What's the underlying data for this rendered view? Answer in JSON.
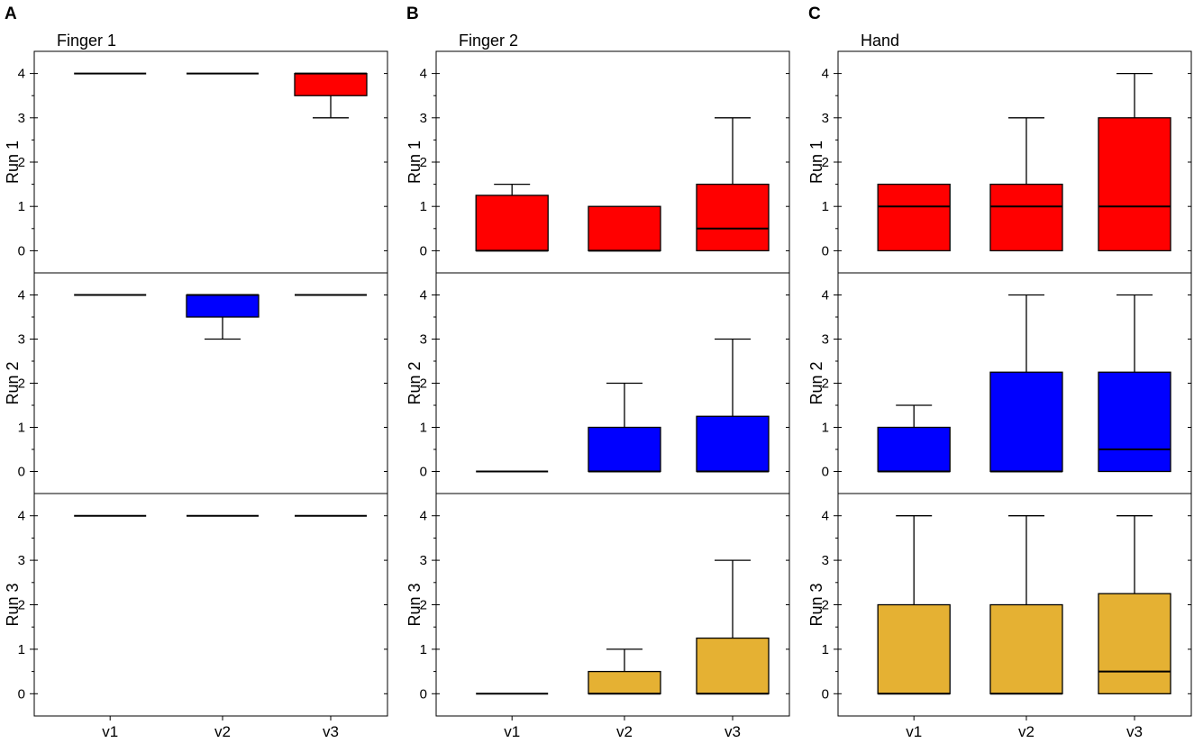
{
  "colors": {
    "run1": "#ff0000",
    "run2": "#0000ff",
    "run3": "#e5b133",
    "stroke": "#000000"
  },
  "chart_data": {
    "type": "boxplot",
    "categories": [
      "v1",
      "v2",
      "v3"
    ],
    "row_labels": [
      "Run 1",
      "Run 2",
      "Run 3"
    ],
    "yticks": [
      0,
      1,
      2,
      3,
      4
    ],
    "ylim": [
      -0.5,
      4.5
    ],
    "panels": [
      {
        "letter": "A",
        "title": "Finger 1",
        "rows": [
          [
            {
              "min": 4,
              "q1": 4,
              "median": 4,
              "q3": 4,
              "max": 4
            },
            {
              "min": 4,
              "q1": 4,
              "median": 4,
              "q3": 4,
              "max": 4
            },
            {
              "min": 3,
              "q1": 3.5,
              "median": 4,
              "q3": 4,
              "max": 4
            }
          ],
          [
            {
              "min": 4,
              "q1": 4,
              "median": 4,
              "q3": 4,
              "max": 4
            },
            {
              "min": 3,
              "q1": 3.5,
              "median": 4,
              "q3": 4,
              "max": 4
            },
            {
              "min": 4,
              "q1": 4,
              "median": 4,
              "q3": 4,
              "max": 4
            }
          ],
          [
            {
              "min": 4,
              "q1": 4,
              "median": 4,
              "q3": 4,
              "max": 4
            },
            {
              "min": 4,
              "q1": 4,
              "median": 4,
              "q3": 4,
              "max": 4
            },
            {
              "min": 4,
              "q1": 4,
              "median": 4,
              "q3": 4,
              "max": 4
            }
          ]
        ]
      },
      {
        "letter": "B",
        "title": "Finger 2",
        "rows": [
          [
            {
              "min": 0,
              "q1": 0,
              "median": 0,
              "q3": 1.25,
              "max": 1.5
            },
            {
              "min": 0,
              "q1": 0,
              "median": 0,
              "q3": 1,
              "max": 1
            },
            {
              "min": 0,
              "q1": 0,
              "median": 0.5,
              "q3": 1.5,
              "max": 3
            }
          ],
          [
            {
              "min": 0,
              "q1": 0,
              "median": 0,
              "q3": 0,
              "max": 0
            },
            {
              "min": 0,
              "q1": 0,
              "median": 0,
              "q3": 1,
              "max": 2
            },
            {
              "min": 0,
              "q1": 0,
              "median": 0,
              "q3": 1.25,
              "max": 3
            }
          ],
          [
            {
              "min": 0,
              "q1": 0,
              "median": 0,
              "q3": 0,
              "max": 0
            },
            {
              "min": 0,
              "q1": 0,
              "median": 0,
              "q3": 0.5,
              "max": 1
            },
            {
              "min": 0,
              "q1": 0,
              "median": 0,
              "q3": 1.25,
              "max": 3
            }
          ]
        ]
      },
      {
        "letter": "C",
        "title": "Hand",
        "rows": [
          [
            {
              "min": 0,
              "q1": 0,
              "median": 1,
              "q3": 1.5,
              "max": 1.5
            },
            {
              "min": 0,
              "q1": 0,
              "median": 1,
              "q3": 1.5,
              "max": 3
            },
            {
              "min": 0,
              "q1": 0,
              "median": 1,
              "q3": 3,
              "max": 4
            }
          ],
          [
            {
              "min": 0,
              "q1": 0,
              "median": 0,
              "q3": 1,
              "max": 1.5
            },
            {
              "min": 0,
              "q1": 0,
              "median": 0,
              "q3": 2.25,
              "max": 4
            },
            {
              "min": 0,
              "q1": 0,
              "median": 0.5,
              "q3": 2.25,
              "max": 4
            }
          ],
          [
            {
              "min": 0,
              "q1": 0,
              "median": 0,
              "q3": 2,
              "max": 4
            },
            {
              "min": 0,
              "q1": 0,
              "median": 0,
              "q3": 2,
              "max": 4
            },
            {
              "min": 0,
              "q1": 0,
              "median": 0.5,
              "q3": 2.25,
              "max": 4
            }
          ]
        ]
      }
    ]
  }
}
